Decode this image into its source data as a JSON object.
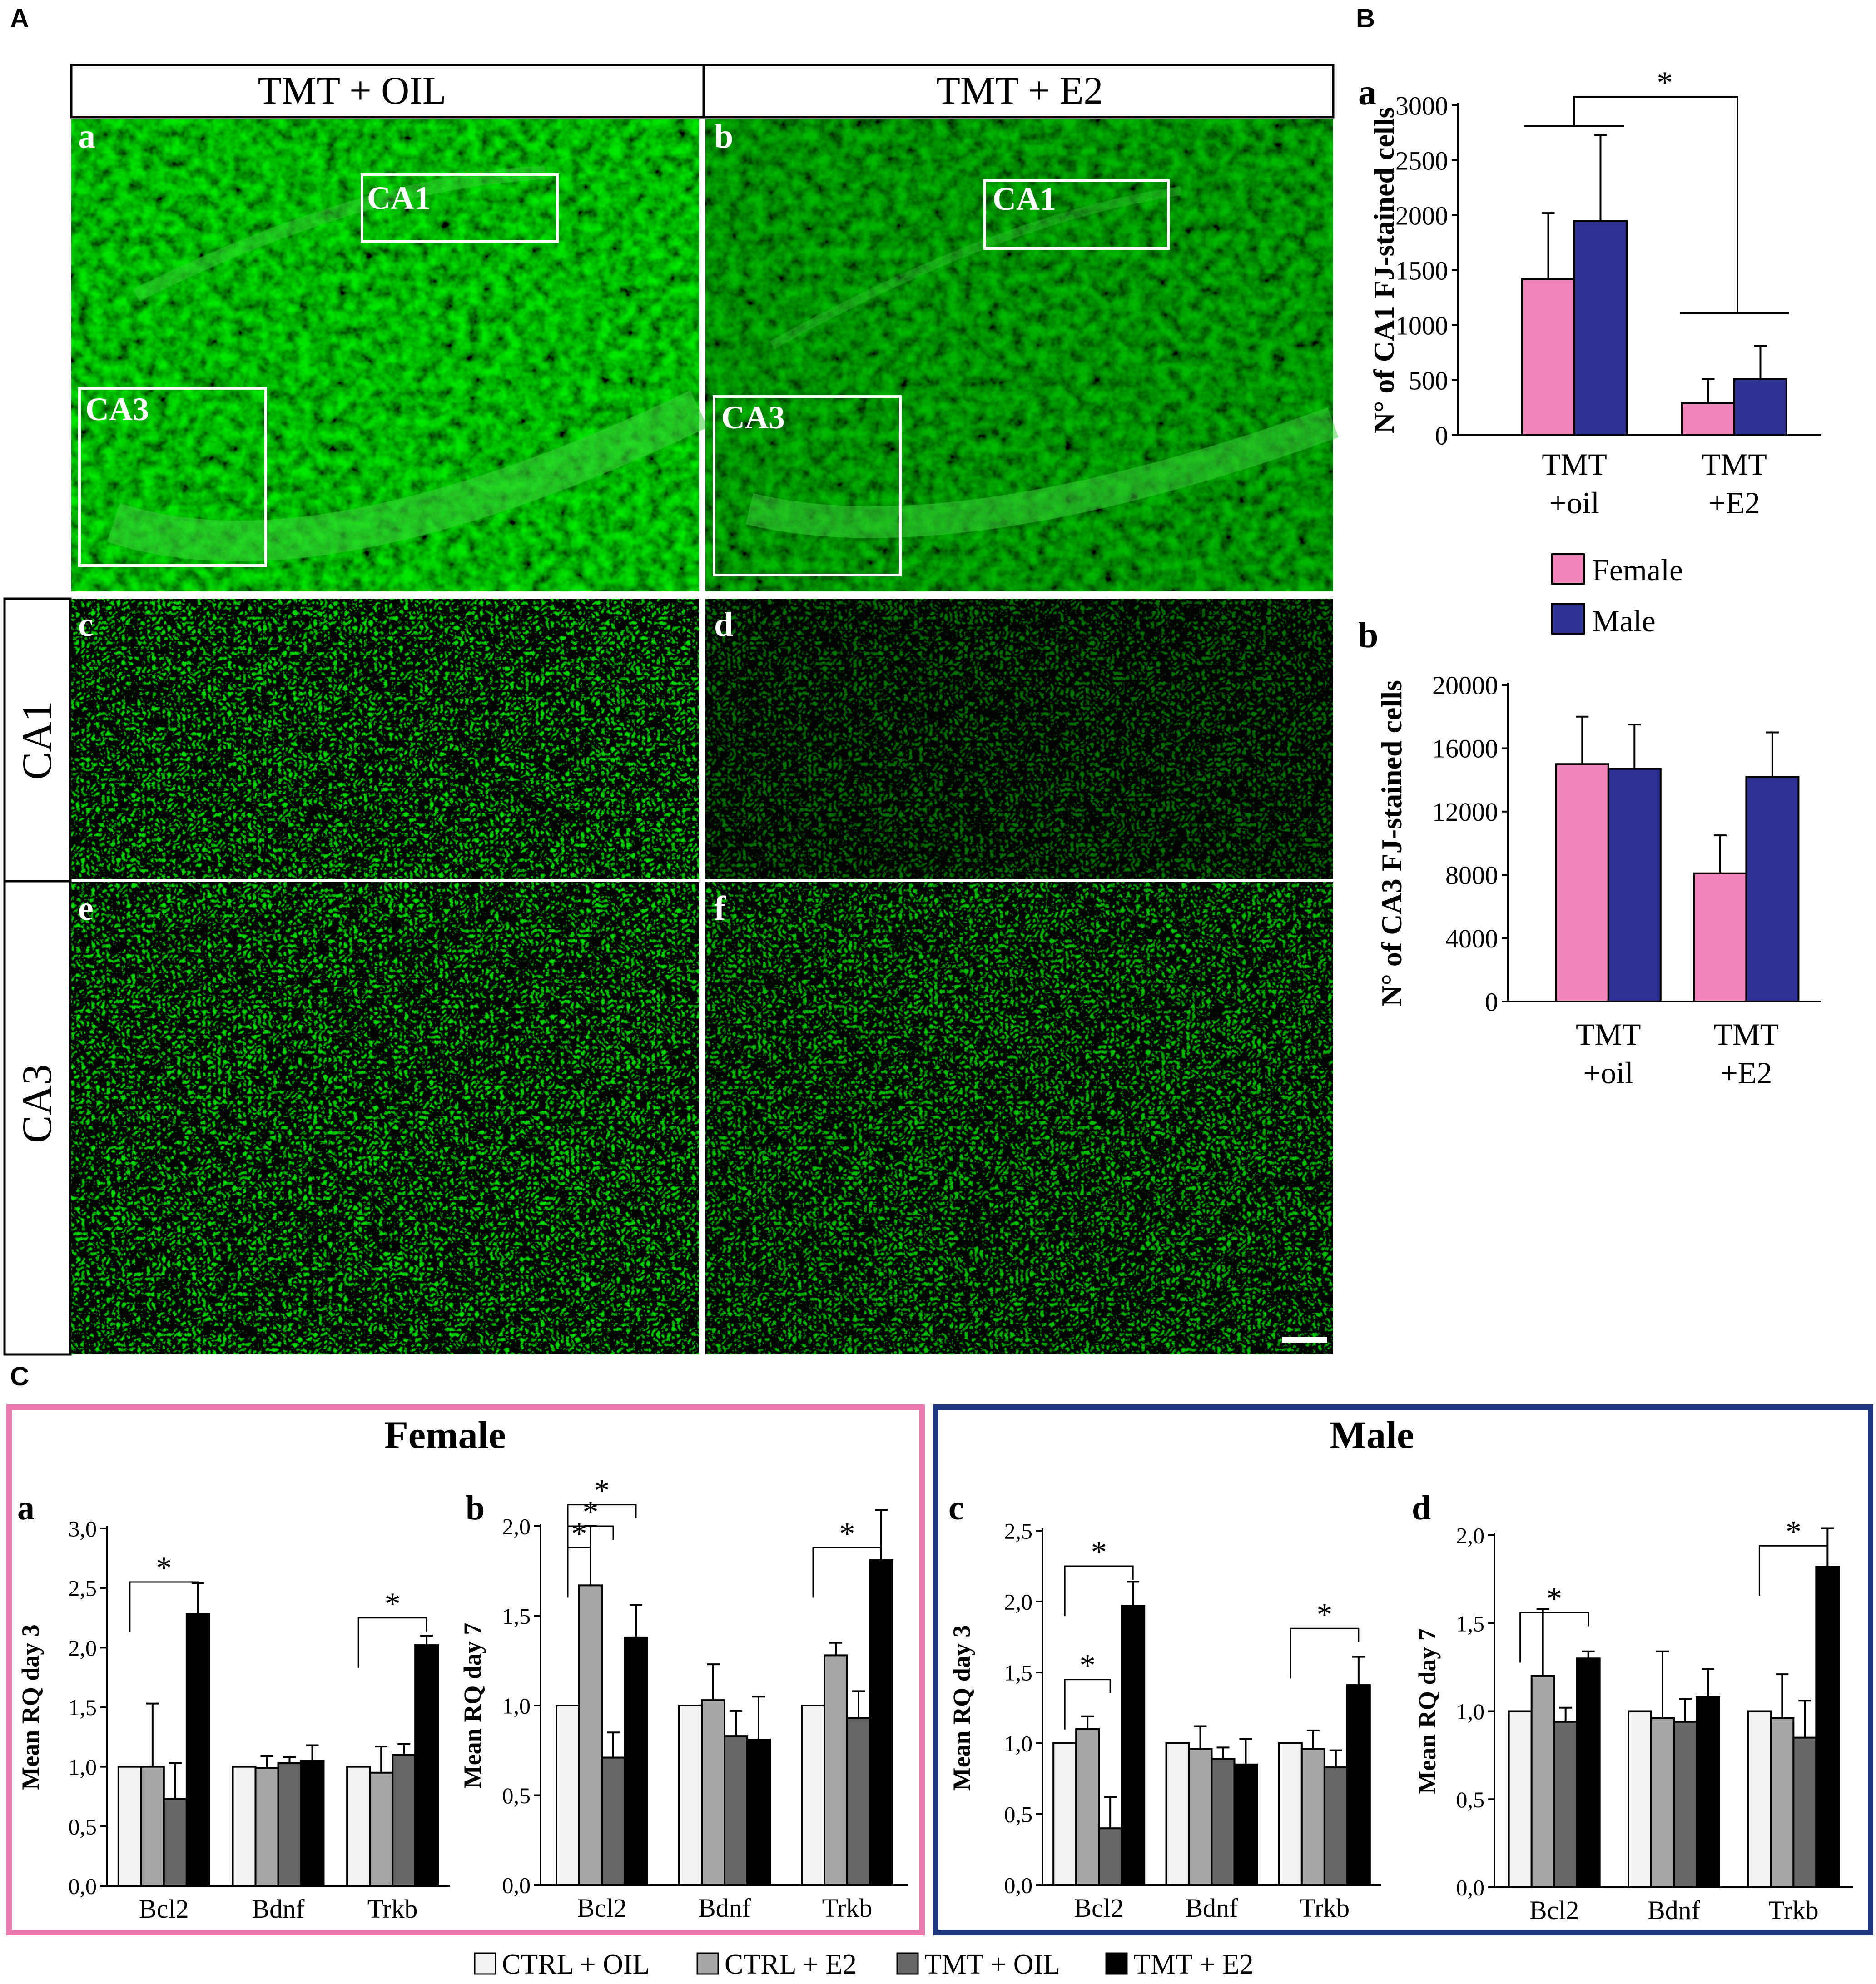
{
  "panel_letters": {
    "A": "A",
    "B": "B",
    "C": "C"
  },
  "micrograph": {
    "column_headers": [
      "TMT + OIL",
      "TMT + E2"
    ],
    "row_labels": [
      "CA1",
      "CA3"
    ],
    "panel_letters": [
      "a",
      "b",
      "c",
      "d",
      "e",
      "f"
    ],
    "roi_labels": [
      "CA1",
      "CA3"
    ],
    "fluorescence_color": "#2ecc40"
  },
  "chart_data": [
    {
      "id": "B-a",
      "type": "bar",
      "letter": "a",
      "categories": [
        [
          "TMT",
          "+oil"
        ],
        [
          "TMT",
          "+E2"
        ]
      ],
      "series": [
        {
          "name": "Female",
          "values": [
            1420,
            290
          ],
          "errors": [
            600,
            220
          ],
          "color": "#f184b8"
        },
        {
          "name": "Male",
          "values": [
            1950,
            510
          ],
          "errors": [
            780,
            300
          ],
          "color": "#2e3192"
        }
      ],
      "ylabel": "N° of CA1 FJ-stained cells",
      "ylim": [
        0,
        3000
      ],
      "yticks": [
        0,
        500,
        1000,
        1500,
        2000,
        2500,
        3000
      ],
      "ytick_labels": [
        "0",
        "500",
        "1000",
        "1500",
        "2000",
        "2500",
        "3000"
      ],
      "significance": "*"
    },
    {
      "id": "B-b",
      "type": "bar",
      "letter": "b",
      "categories": [
        [
          "TMT",
          "+oil"
        ],
        [
          "TMT",
          "+E2"
        ]
      ],
      "series": [
        {
          "name": "Female",
          "values": [
            15000,
            8100
          ],
          "errors": [
            3000,
            2400
          ],
          "color": "#f184b8"
        },
        {
          "name": "Male",
          "values": [
            14700,
            14200
          ],
          "errors": [
            2800,
            2800
          ],
          "color": "#2e3192"
        }
      ],
      "ylabel": "N° of CA3 FJ-stained cells",
      "ylim": [
        0,
        20000
      ],
      "yticks": [
        0,
        4000,
        8000,
        12000,
        16000,
        20000
      ],
      "ytick_labels": [
        "0",
        "4000",
        "8000",
        "12000",
        "16000",
        "20000"
      ]
    },
    {
      "id": "C-a",
      "type": "bar",
      "letter": "a",
      "group": "Female",
      "categories": [
        "Bcl2",
        "Bdnf",
        "Trkb"
      ],
      "series": [
        {
          "name": "CTRL + OIL",
          "values": [
            1.0,
            1.0,
            1.0
          ],
          "errors": [
            0,
            0,
            0
          ],
          "color": "#f2f2f2"
        },
        {
          "name": "CTRL + E2",
          "values": [
            1.0,
            0.99,
            0.95
          ],
          "errors": [
            0.53,
            0.1,
            0.22
          ],
          "color": "#a6a6a6"
        },
        {
          "name": "TMT + OIL",
          "values": [
            0.73,
            1.03,
            1.1
          ],
          "errors": [
            0.3,
            0.05,
            0.09
          ],
          "color": "#666666"
        },
        {
          "name": "TMT + E2",
          "values": [
            2.28,
            1.05,
            2.02
          ],
          "errors": [
            0.26,
            0.13,
            0.08
          ],
          "color": "#000000"
        }
      ],
      "ylabel": "Mean RQ day 3",
      "ylim": [
        0,
        3.0
      ],
      "yticks": [
        0,
        0.5,
        1.0,
        1.5,
        2.0,
        2.5,
        3.0
      ],
      "ytick_labels": [
        "0,0",
        "0,5",
        "1,0",
        "1,5",
        "2,0",
        "2,5",
        "3,0"
      ],
      "significance": "*"
    },
    {
      "id": "C-b",
      "type": "bar",
      "letter": "b",
      "group": "Female",
      "categories": [
        "Bcl2",
        "Bdnf",
        "Trkb"
      ],
      "series": [
        {
          "name": "CTRL + OIL",
          "values": [
            1.0,
            1.0,
            1.0
          ],
          "errors": [
            0,
            0,
            0
          ],
          "color": "#f2f2f2"
        },
        {
          "name": "CTRL + E2",
          "values": [
            1.67,
            1.03,
            1.28
          ],
          "errors": [
            0.33,
            0.2,
            0.07
          ],
          "color": "#a6a6a6"
        },
        {
          "name": "TMT + OIL",
          "values": [
            0.71,
            0.83,
            0.93
          ],
          "errors": [
            0.14,
            0.14,
            0.15
          ],
          "color": "#666666"
        },
        {
          "name": "TMT + E2",
          "values": [
            1.38,
            0.81,
            1.81
          ],
          "errors": [
            0.18,
            0.24,
            0.28
          ],
          "color": "#000000"
        }
      ],
      "ylabel": "Mean RQ day 7",
      "ylim": [
        0,
        2.0
      ],
      "yticks": [
        0,
        0.5,
        1.0,
        1.5,
        2.0
      ],
      "ytick_labels": [
        "0,0",
        "0,5",
        "1,0",
        "1,5",
        "2,0"
      ],
      "significance": "*"
    },
    {
      "id": "C-c",
      "type": "bar",
      "letter": "c",
      "group": "Male",
      "categories": [
        "Bcl2",
        "Bdnf",
        "Trkb"
      ],
      "series": [
        {
          "name": "CTRL + OIL",
          "values": [
            1.0,
            1.0,
            1.0
          ],
          "errors": [
            0,
            0,
            0
          ],
          "color": "#f2f2f2"
        },
        {
          "name": "CTRL + E2",
          "values": [
            1.1,
            0.96,
            0.96
          ],
          "errors": [
            0.09,
            0.16,
            0.13
          ],
          "color": "#a6a6a6"
        },
        {
          "name": "TMT + OIL",
          "values": [
            0.4,
            0.89,
            0.83
          ],
          "errors": [
            0.22,
            0.08,
            0.12
          ],
          "color": "#666666"
        },
        {
          "name": "TMT + E2",
          "values": [
            1.97,
            0.85,
            1.41
          ],
          "errors": [
            0.17,
            0.18,
            0.2
          ],
          "color": "#000000"
        }
      ],
      "ylabel": "Mean RQ day 3",
      "ylim": [
        0,
        2.5
      ],
      "yticks": [
        0,
        0.5,
        1.0,
        1.5,
        2.0,
        2.5
      ],
      "ytick_labels": [
        "0,0",
        "0,5",
        "1,0",
        "1,5",
        "2,0",
        "2,5"
      ],
      "significance": "*"
    },
    {
      "id": "C-d",
      "type": "bar",
      "letter": "d",
      "group": "Male",
      "categories": [
        "Bcl2",
        "Bdnf",
        "Trkb"
      ],
      "series": [
        {
          "name": "CTRL + OIL",
          "values": [
            1.0,
            1.0,
            1.0
          ],
          "errors": [
            0,
            0,
            0
          ],
          "color": "#f2f2f2"
        },
        {
          "name": "CTRL + E2",
          "values": [
            1.2,
            0.96,
            0.96
          ],
          "errors": [
            0.38,
            0.38,
            0.25
          ],
          "color": "#a6a6a6"
        },
        {
          "name": "TMT + OIL",
          "values": [
            0.94,
            0.94,
            0.85
          ],
          "errors": [
            0.08,
            0.13,
            0.21
          ],
          "color": "#666666"
        },
        {
          "name": "TMT + E2",
          "values": [
            1.3,
            1.08,
            1.82
          ],
          "errors": [
            0.04,
            0.16,
            0.22
          ],
          "color": "#000000"
        }
      ],
      "ylabel": "Mean RQ day 7",
      "ylim": [
        0,
        2.0
      ],
      "yticks": [
        0,
        0.5,
        1.0,
        1.5,
        2.0
      ],
      "ytick_labels": [
        "0,0",
        "0,5",
        "1,0",
        "1,5",
        "2,0"
      ],
      "significance": "*"
    }
  ],
  "legend_B": [
    {
      "name": "Female",
      "color": "#f184b8"
    },
    {
      "name": "Male",
      "color": "#2e3192"
    }
  ],
  "section_C": {
    "female_title": "Female",
    "male_title": "Male",
    "female_border": "#e87aae",
    "male_border": "#1f3580",
    "legend": [
      {
        "name": "CTRL + OIL",
        "color": "#f2f2f2"
      },
      {
        "name": "CTRL + E2",
        "color": "#a6a6a6"
      },
      {
        "name": "TMT + OIL",
        "color": "#666666"
      },
      {
        "name": "TMT + E2",
        "color": "#000000"
      }
    ]
  }
}
